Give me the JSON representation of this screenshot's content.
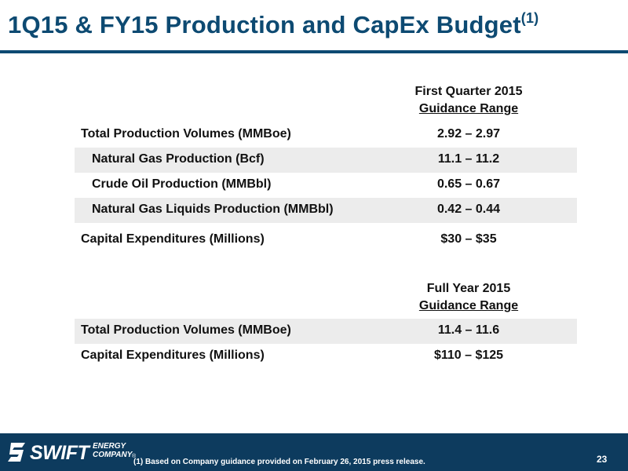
{
  "slide": {
    "title": "1Q15 & FY15 Production and CapEx Budget",
    "title_superscript": "(1)",
    "page_number": "23"
  },
  "quarter_section": {
    "header_line1": "First Quarter 2015",
    "header_line2": "Guidance Range",
    "rows": [
      {
        "label": "Total Production Volumes (MMBoe)",
        "value": "2.92 – 2.97"
      },
      {
        "label": "Natural Gas Production (Bcf)",
        "value": "11.1 – 11.2"
      },
      {
        "label": "Crude Oil Production (MMBbl)",
        "value": "0.65 – 0.67"
      },
      {
        "label": "Natural Gas Liquids Production (MMBbl)",
        "value": "0.42 – 0.44"
      },
      {
        "label": "Capital Expenditures (Millions)",
        "value": "$30 – $35"
      }
    ]
  },
  "year_section": {
    "header_line1": "Full Year 2015",
    "header_line2": "Guidance Range",
    "rows": [
      {
        "label": "Total Production Volumes (MMBoe)",
        "value": "11.4 – 11.6"
      },
      {
        "label": "Capital Expenditures (Millions)",
        "value": "$110 – $125"
      }
    ]
  },
  "footer": {
    "logo_word": "SWIFT",
    "logo_line1": "ENERGY",
    "logo_line2": "COMPANY",
    "logo_reg": "®",
    "footnote": "(1)   Based on Company guidance provided on February 26, 2015 press release."
  },
  "colors": {
    "brand_blue": "#0d4a72",
    "footer_navy": "#0d3b5e",
    "row_shade": "#ececec"
  }
}
